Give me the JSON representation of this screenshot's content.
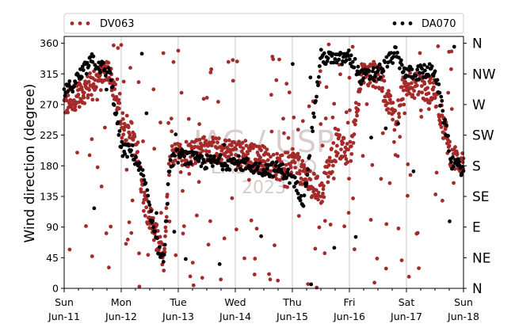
{
  "chart_data": {
    "type": "scatter",
    "ylabel": "Wind direction (degree)",
    "ylim": [
      0,
      370
    ],
    "yticks": [
      0,
      45,
      90,
      135,
      180,
      225,
      270,
      315,
      360
    ],
    "xlim": [
      "2023-06-11T00:00",
      "2023-06-18T00:00"
    ],
    "xticks": [
      {
        "t": 0,
        "top": "Sun",
        "bottom": "Jun-11"
      },
      {
        "t": 1,
        "top": "Mon",
        "bottom": "Jun-12"
      },
      {
        "t": 2,
        "top": "Tue",
        "bottom": "Jun-13"
      },
      {
        "t": 3,
        "top": "Wed",
        "bottom": "Jun-14"
      },
      {
        "t": 4,
        "top": "Thu",
        "bottom": "Jun-15"
      },
      {
        "t": 5,
        "top": "Fri",
        "bottom": "Jun-16"
      },
      {
        "t": 6,
        "top": "Sat",
        "bottom": "Jun-17"
      },
      {
        "t": 7,
        "top": "Sun",
        "bottom": "Jun-18"
      }
    ],
    "compass_labels": [
      "N",
      "NE",
      "E",
      "SE",
      "S",
      "SW",
      "W",
      "NW",
      "N"
    ],
    "grid": "vertical at day boundaries",
    "legend_position": "top, above plot",
    "series": [
      {
        "name": "DV063",
        "color": "#a52a2a",
        "marker": "dot",
        "trend": [
          [
            0.0,
            270
          ],
          [
            0.5,
            300
          ],
          [
            0.8,
            320
          ],
          [
            1.0,
            240
          ],
          [
            1.2,
            225
          ],
          [
            1.4,
            130
          ],
          [
            1.6,
            80
          ],
          [
            1.75,
            40
          ],
          [
            1.85,
            190
          ],
          [
            2.0,
            195
          ],
          [
            2.5,
            205
          ],
          [
            3.0,
            198
          ],
          [
            3.5,
            190
          ],
          [
            3.8,
            175
          ],
          [
            4.0,
            190
          ],
          [
            4.2,
            165
          ],
          [
            4.5,
            140
          ],
          [
            4.8,
            215
          ],
          [
            5.0,
            190
          ],
          [
            5.2,
            310
          ],
          [
            5.5,
            315
          ],
          [
            5.8,
            250
          ],
          [
            6.0,
            300
          ],
          [
            6.5,
            290
          ],
          [
            6.8,
            190
          ],
          [
            7.0,
            185
          ]
        ],
        "scatter_range": [
          0,
          360
        ]
      },
      {
        "name": "DA070",
        "color": "#000000",
        "marker": "dot",
        "trend": [
          [
            0.0,
            285
          ],
          [
            0.5,
            335
          ],
          [
            0.8,
            315
          ],
          [
            1.0,
            205
          ],
          [
            1.2,
            200
          ],
          [
            1.4,
            160
          ],
          [
            1.6,
            70
          ],
          [
            1.75,
            40
          ],
          [
            1.85,
            185
          ],
          [
            2.0,
            195
          ],
          [
            2.5,
            185
          ],
          [
            3.0,
            185
          ],
          [
            3.5,
            175
          ],
          [
            3.8,
            175
          ],
          [
            4.0,
            160
          ],
          [
            4.2,
            130
          ],
          [
            4.5,
            340
          ],
          [
            4.8,
            335
          ],
          [
            5.0,
            340
          ],
          [
            5.2,
            310
          ],
          [
            5.5,
            315
          ],
          [
            5.8,
            345
          ],
          [
            6.0,
            315
          ],
          [
            6.5,
            320
          ],
          [
            6.8,
            185
          ],
          [
            7.0,
            175
          ]
        ],
        "scatter_range": [
          0,
          360
        ]
      }
    ],
    "watermark": [
      "IAG / USP",
      "LAB MICRO",
      "2023"
    ]
  }
}
